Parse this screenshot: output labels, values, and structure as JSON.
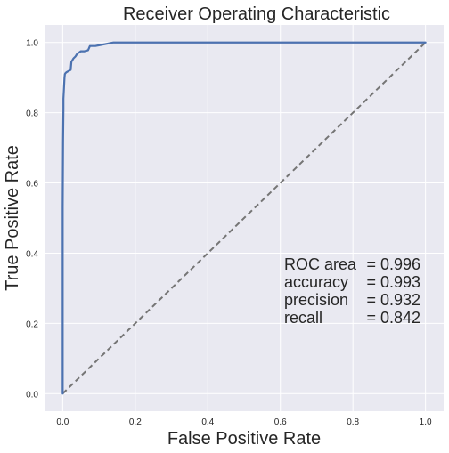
{
  "chart_data": {
    "type": "line",
    "title": "Receiver Operating Characteristic",
    "xlabel": "False Positive Rate",
    "ylabel": "True Positive Rate",
    "xlim": [
      -0.05,
      1.05
    ],
    "ylim": [
      -0.05,
      1.05
    ],
    "xticks": [
      "0.0",
      "0.2",
      "0.4",
      "0.6",
      "0.8",
      "1.0"
    ],
    "yticks": [
      "0.0",
      "0.2",
      "0.4",
      "0.6",
      "0.8",
      "1.0"
    ],
    "grid": true,
    "colors": {
      "plot_background": "#e9e9f1",
      "grid": "#ffffff",
      "roc_curve": "#4c72b0",
      "chance_line": "#757575",
      "text": "#262626"
    },
    "series": [
      {
        "style": "solid",
        "x": [
          0.0,
          0.0,
          0.001,
          0.002,
          0.002,
          0.004,
          0.005,
          0.006,
          0.008,
          0.01,
          0.015,
          0.022,
          0.024,
          0.03,
          0.035,
          0.04,
          0.05,
          0.06,
          0.07,
          0.075,
          0.09,
          0.1,
          0.12,
          0.14,
          0.5,
          1.0
        ],
        "y": [
          0.0,
          0.53,
          0.72,
          0.81,
          0.84,
          0.88,
          0.9,
          0.91,
          0.913,
          0.915,
          0.918,
          0.922,
          0.945,
          0.955,
          0.96,
          0.968,
          0.975,
          0.975,
          0.978,
          0.99,
          0.99,
          0.992,
          0.996,
          1.0,
          1.0,
          1.0
        ]
      },
      {
        "style": "dashed",
        "x": [
          0.0,
          1.0
        ],
        "y": [
          0.0,
          1.0
        ]
      }
    ],
    "annotations": [
      {
        "label": "ROC area",
        "value": "= 0.996"
      },
      {
        "label": "accuracy",
        "value": "= 0.993"
      },
      {
        "label": "precision",
        "value": "= 0.932"
      },
      {
        "label": "recall",
        "value": "= 0.842"
      }
    ]
  }
}
